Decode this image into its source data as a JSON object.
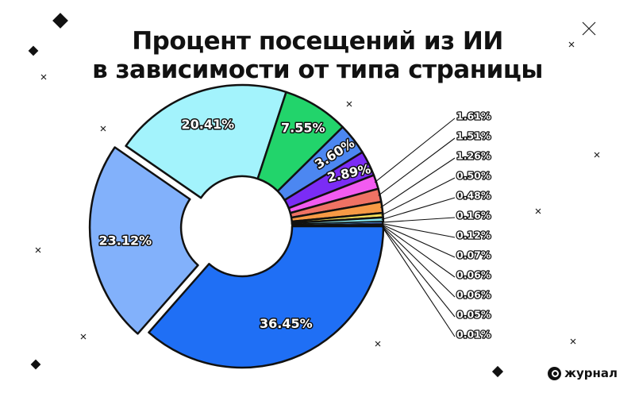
{
  "title": {
    "line1": "Процент посещений из ИИ",
    "line2": "в зависимости от типа страницы"
  },
  "brand": {
    "name": "журнал"
  },
  "chart_data": {
    "type": "pie",
    "title": "Процент посещений из ИИ в зависимости от типа страницы",
    "variant": "donut",
    "values": [
      36.45,
      23.12,
      20.41,
      7.55,
      3.6,
      2.89,
      1.61,
      1.51,
      1.26,
      0.5,
      0.48,
      0.16,
      0.12,
      0.07,
      0.06,
      0.06,
      0.05,
      0.01
    ],
    "labels": [
      "36.45%",
      "23.12%",
      "20.41%",
      "7.55%",
      "3.60%",
      "2.89%",
      "1.61%",
      "1.51%",
      "1.26%",
      "0.50%",
      "0.48%",
      "0.16%",
      "0.12%",
      "0.07%",
      "0.06%",
      "0.06%",
      "0.05%",
      "0.01%"
    ],
    "colors": [
      "#1f6ff5",
      "#82b1fb",
      "#a3f3fc",
      "#22d46b",
      "#4c87f1",
      "#7b2cf5",
      "#f25bf0",
      "#ef7264",
      "#f79a45",
      "#f6e35a",
      "#87e6ec",
      "#4aa8f2",
      "#5b5df0",
      "#5a7ce6",
      "#67d59b",
      "#c9a1f2",
      "#f0a8d0",
      "#a8b8c8"
    ],
    "exploded_index": 1,
    "callout_labels": [
      "1.61%",
      "1.51%",
      "1.26%",
      "0.50%",
      "0.48%",
      "0.16%",
      "0.12%",
      "0.07%",
      "0.06%",
      "0.06%",
      "0.05%",
      "0.01%"
    ]
  }
}
